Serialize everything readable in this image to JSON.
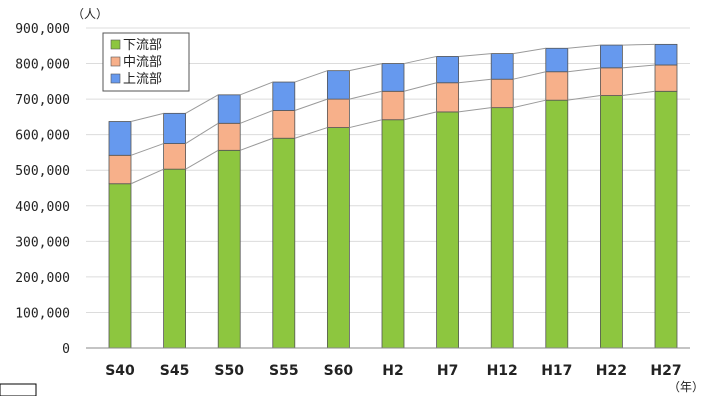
{
  "chart_data": {
    "type": "bar",
    "stacked": true,
    "categories": [
      "S40",
      "S45",
      "S50",
      "S55",
      "S60",
      "H2",
      "H7",
      "H12",
      "H17",
      "H22",
      "H27"
    ],
    "series": [
      {
        "name": "下流部",
        "color": "#8dc63f",
        "values": [
          462000,
          503000,
          556000,
          590000,
          620000,
          642000,
          664000,
          676000,
          697000,
          710000,
          722000
        ]
      },
      {
        "name": "中流部",
        "color": "#f7b08a",
        "values": [
          80000,
          72000,
          76000,
          78000,
          80000,
          80000,
          82000,
          80000,
          80000,
          78000,
          74000
        ]
      },
      {
        "name": "上流部",
        "color": "#6699ee",
        "values": [
          95000,
          85000,
          80000,
          80000,
          80000,
          78000,
          74000,
          72000,
          66000,
          64000,
          58000
        ]
      }
    ],
    "yticks": [
      "0",
      "100,000",
      "200,000",
      "300,000",
      "400,000",
      "500,000",
      "600,000",
      "700,000",
      "800,000",
      "900,000"
    ],
    "ylim": [
      0,
      900000
    ],
    "ylabel": "（人）",
    "xlabel": "（年）",
    "grid": true,
    "legend_position": "top-left",
    "legend_order": [
      "下流部",
      "中流部",
      "上流部"
    ],
    "series_connector_lines": true
  }
}
